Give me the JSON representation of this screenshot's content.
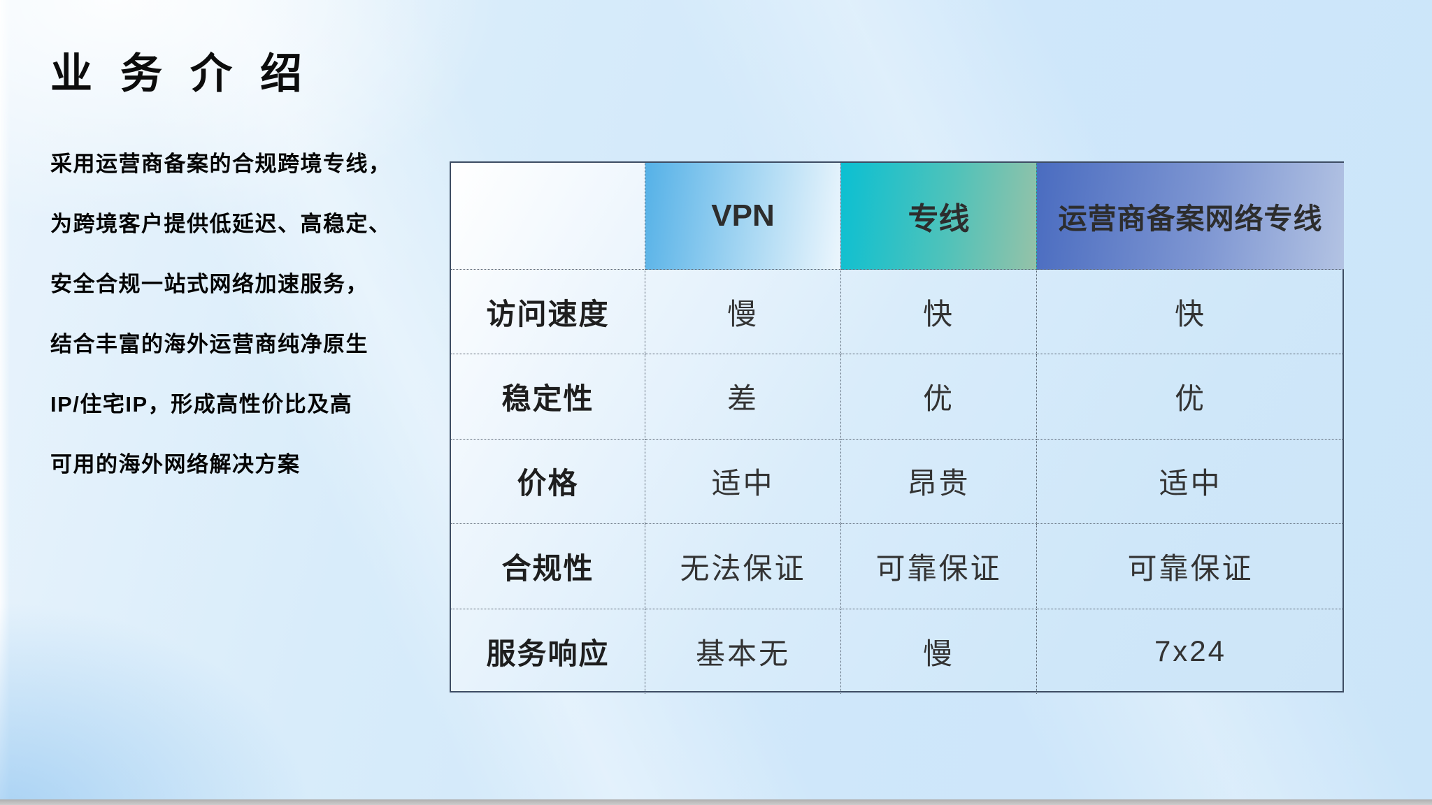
{
  "title": "业务介绍",
  "intro": {
    "lines": [
      "采用运营商备案的合规跨境专线，",
      "为跨境客户提供低延迟、高稳定、",
      "安全合规一站式网络加速服务，",
      "结合丰富的海外运营商纯净原生",
      "IP/住宅IP，形成高性价比及高",
      "可用的海外网络解决方案"
    ]
  },
  "table": {
    "columns": [
      "",
      "VPN",
      "专线",
      "运营商备案网络专线"
    ],
    "rows": [
      {
        "label": "访问速度",
        "values": [
          "慢",
          "快",
          "快"
        ]
      },
      {
        "label": "稳定性",
        "values": [
          "差",
          "优",
          "优"
        ]
      },
      {
        "label": "价格",
        "values": [
          "适中",
          "昂贵",
          "适中"
        ]
      },
      {
        "label": "合规性",
        "values": [
          "无法保证",
          "可靠保证",
          "可靠保证"
        ]
      },
      {
        "label": "服务响应",
        "values": [
          "基本无",
          "慢",
          "7x24"
        ]
      }
    ]
  },
  "colors": {
    "page_bg": "#cfe7fa",
    "table_border": "#3d4c63",
    "grid_dot": "#55606e",
    "header_text": "#2d2d2d",
    "cell_text": "#333333",
    "vpn_grad_start": "#55b1e7",
    "vpn_grad_end": "#ecf6fd",
    "line_grad_start": "#0bc0d2",
    "line_grad_end": "#95c2a8",
    "carrier_grad_start": "#4a6cc0",
    "carrier_grad_end": "#b3c3e3",
    "bottom_bar": "#cdcdcd"
  }
}
